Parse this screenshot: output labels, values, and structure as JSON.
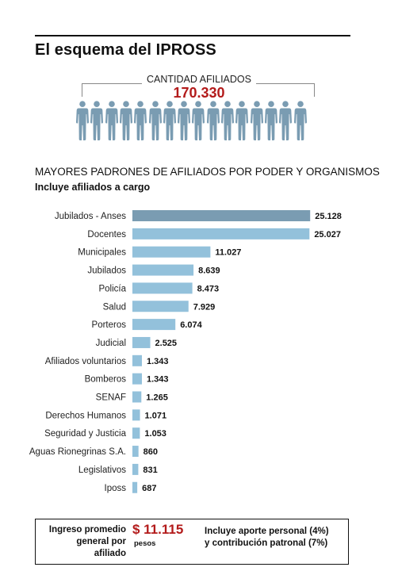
{
  "header": {
    "title": "El esquema del IPROSS"
  },
  "affiliates": {
    "label": "CANTIDAD AFILIADOS",
    "value": "170.330",
    "figure_icon": "person-icon",
    "figure_count": 16,
    "figure_color": "#7a9cb2"
  },
  "section": {
    "title": "MAYORES PADRONES DE AFILIADOS POR PODER Y ORGANISMOS",
    "subtitle": "Incluye afiliados a cargo"
  },
  "chart_data": {
    "type": "bar",
    "orientation": "horizontal",
    "categories": [
      "Jubilados - Anses",
      "Docentes",
      "Municipales",
      "Jubilados",
      "Policía",
      "Salud",
      "Porteros",
      "Judicial",
      "Afiliados voluntarios",
      "Bomberos",
      "SENAF",
      "Derechos Humanos",
      "Seguridad y Justicia",
      "Aguas Rionegrinas S.A.",
      "Legislativos",
      "Iposs"
    ],
    "values": [
      25128,
      25027,
      11027,
      8639,
      8473,
      7929,
      6074,
      2525,
      1343,
      1343,
      1265,
      1071,
      1053,
      860,
      831,
      687
    ],
    "value_labels": [
      "25.128",
      "25.027",
      "11.027",
      "8.639",
      "8.473",
      "7.929",
      "6.074",
      "2.525",
      "1.343",
      "1.343",
      "1.265",
      "1.071",
      "1.053",
      "860",
      "831",
      "687"
    ],
    "bar_color": "#93c1db",
    "highlight_color": "#7a9cb2",
    "highlight_index": 0,
    "xlim": [
      0,
      26000
    ],
    "grid": false,
    "legend": "none"
  },
  "footer": {
    "left_lines": [
      "Ingreso promedio",
      "general por",
      "afiliado"
    ],
    "amount": "$ 11.115",
    "unit": "pesos",
    "right_lines": [
      "Incluye aporte personal (4%)",
      "y contribución patronal (7%)"
    ]
  }
}
